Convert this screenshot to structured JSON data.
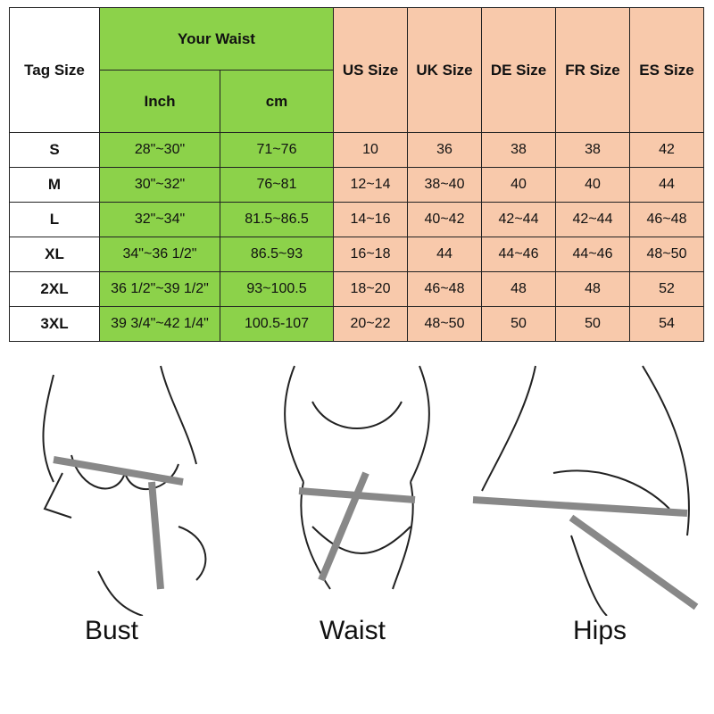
{
  "table": {
    "tag_size_header": "Tag Size",
    "waist_header": "Your Waist",
    "inch_header": "Inch",
    "cm_header": "cm",
    "region_headers": [
      "US Size",
      "UK Size",
      "DE Size",
      "FR Size",
      "ES Size"
    ],
    "rows": [
      {
        "tag": "S",
        "inch": "28\"~30\"",
        "cm": "71~76",
        "us": "10",
        "uk": "36",
        "de": "38",
        "fr": "38",
        "es": "42"
      },
      {
        "tag": "M",
        "inch": "30\"~32\"",
        "cm": "76~81",
        "us": "12~14",
        "uk": "38~40",
        "de": "40",
        "fr": "40",
        "es": "44"
      },
      {
        "tag": "L",
        "inch": "32\"~34\"",
        "cm": "81.5~86.5",
        "us": "14~16",
        "uk": "40~42",
        "de": "42~44",
        "fr": "42~44",
        "es": "46~48"
      },
      {
        "tag": "XL",
        "inch": "34\"~36 1/2\"",
        "cm": "86.5~93",
        "us": "16~18",
        "uk": "44",
        "de": "44~46",
        "fr": "44~46",
        "es": "48~50"
      },
      {
        "tag": "2XL",
        "inch": "36 1/2\"~39 1/2\"",
        "cm": "93~100.5",
        "us": "18~20",
        "uk": "46~48",
        "de": "48",
        "fr": "48",
        "es": "52"
      },
      {
        "tag": "3XL",
        "inch": "39 3/4\"~42 1/4\"",
        "cm": "100.5-107",
        "us": "20~22",
        "uk": "48~50",
        "de": "50",
        "fr": "50",
        "es": "54"
      }
    ],
    "colors": {
      "waist": "#8cd24a",
      "regions": "#f8c9ab",
      "border": "#222222"
    }
  },
  "measurements": [
    {
      "label": "Bust",
      "icon": "bust-measure-illustration"
    },
    {
      "label": "Waist",
      "icon": "waist-measure-illustration"
    },
    {
      "label": "Hips",
      "icon": "hips-measure-illustration"
    }
  ]
}
